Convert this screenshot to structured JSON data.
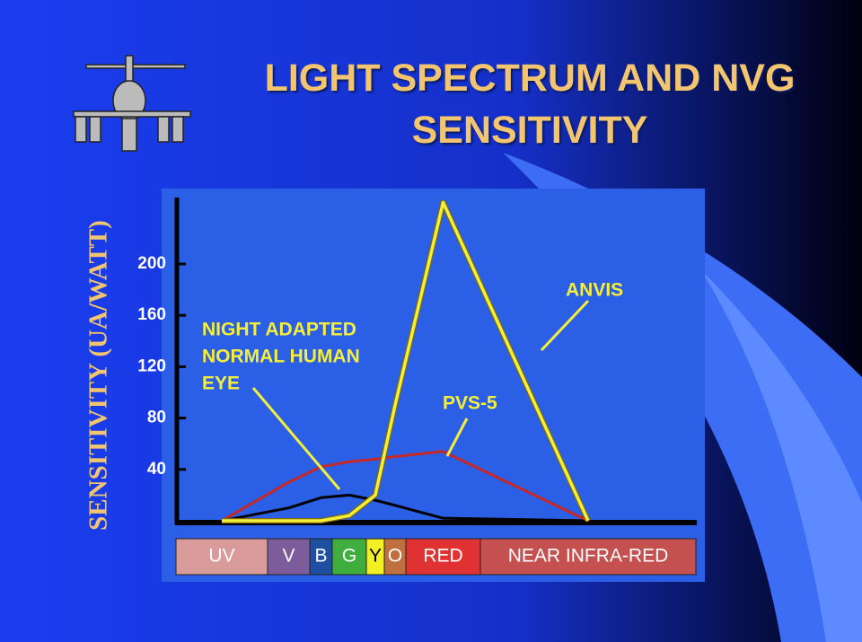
{
  "chart_data": {
    "type": "line",
    "title": "LIGHT SPECTRUM AND NVG SENSITIVITY",
    "y_label": "SENSITIVITY (UA/WATT)",
    "categories": [
      "UV",
      "V",
      "B",
      "G",
      "Y",
      "O",
      "RED",
      "NEAR INFRA-RED"
    ],
    "colors": [
      "#d99a9a",
      "#7d5c9c",
      "#1f4fa0",
      "#3fae3f",
      "#f2ef22",
      "#c0703e",
      "#e03232",
      "#c45050"
    ],
    "series": [
      {
        "name": "NIGHT ADAPTED NORMAL HUMAN EYE",
        "color": "#000000",
        "values": [
          0,
          10,
          18,
          20,
          16,
          12,
          2,
          0
        ]
      },
      {
        "name": "PVS-5",
        "color": "#c62828",
        "values": [
          0,
          30,
          42,
          46,
          48,
          50,
          54,
          0
        ]
      },
      {
        "name": "ANVIS",
        "color": "#f5ef3a",
        "values": [
          0,
          0,
          0,
          4,
          20,
          90,
          248,
          0
        ]
      }
    ],
    "annotation_lines": [
      "NIGHT ADAPTED",
      "NORMAL HUMAN",
      "EYE"
    ],
    "ylim": [
      0,
      250
    ],
    "yticks": [
      40,
      80,
      120,
      160,
      200
    ]
  }
}
